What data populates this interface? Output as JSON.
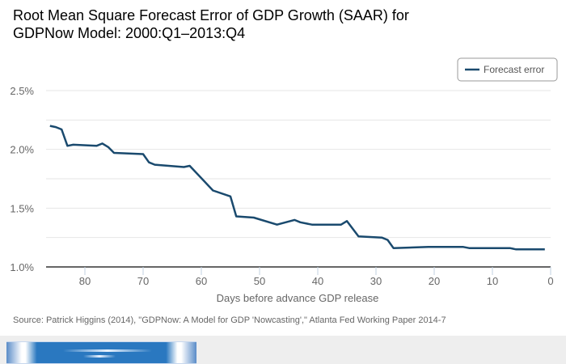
{
  "chart_data": {
    "type": "line",
    "title_lines": [
      "Root Mean Square Forecast Error of GDP Growth (SAAR) for",
      "GDPNow Model: 2000:Q1–2013:Q4"
    ],
    "xlabel": "Days before advance GDP release",
    "ylabel": "",
    "xlim": [
      87,
      0
    ],
    "x_reversed": true,
    "ylim": [
      1.0,
      2.5
    ],
    "x_ticks": [
      80,
      70,
      60,
      50,
      40,
      30,
      20,
      10,
      0
    ],
    "x_tick_labels": [
      "80",
      "70",
      "60",
      "50",
      "40",
      "30",
      "20",
      "10",
      "0"
    ],
    "y_ticks": [
      1.0,
      1.5,
      2.0,
      2.5
    ],
    "y_tick_labels": [
      "1.0%",
      "1.5%",
      "2.0%",
      "2.5%"
    ],
    "y_gridlines": [
      1.25,
      1.5,
      1.75,
      2.0,
      2.25,
      2.5
    ],
    "grid": true,
    "legend_position": "top-right",
    "series": [
      {
        "name": "Forecast error",
        "color": "#1a4a6e",
        "x": [
          86,
          85,
          84,
          83,
          82,
          78,
          77,
          76,
          75,
          70,
          69,
          68,
          63,
          62,
          58,
          55,
          54,
          51,
          47,
          44,
          43,
          41,
          36,
          35,
          33,
          29,
          28,
          27,
          21,
          15,
          14,
          7,
          6,
          1
        ],
        "values": [
          2.2,
          2.19,
          2.17,
          2.03,
          2.04,
          2.03,
          2.05,
          2.02,
          1.97,
          1.96,
          1.89,
          1.87,
          1.85,
          1.86,
          1.65,
          1.6,
          1.43,
          1.42,
          1.36,
          1.4,
          1.38,
          1.36,
          1.36,
          1.39,
          1.26,
          1.25,
          1.23,
          1.16,
          1.17,
          1.17,
          1.16,
          1.16,
          1.15,
          1.15
        ]
      }
    ],
    "source": "Source: Patrick Higgins (2014), \"GDPNow: A Model for GDP 'Nowcasting',\" Atlanta Fed Working Paper 2014-7"
  },
  "footer": {
    "image_icon": "help-banner-image"
  }
}
